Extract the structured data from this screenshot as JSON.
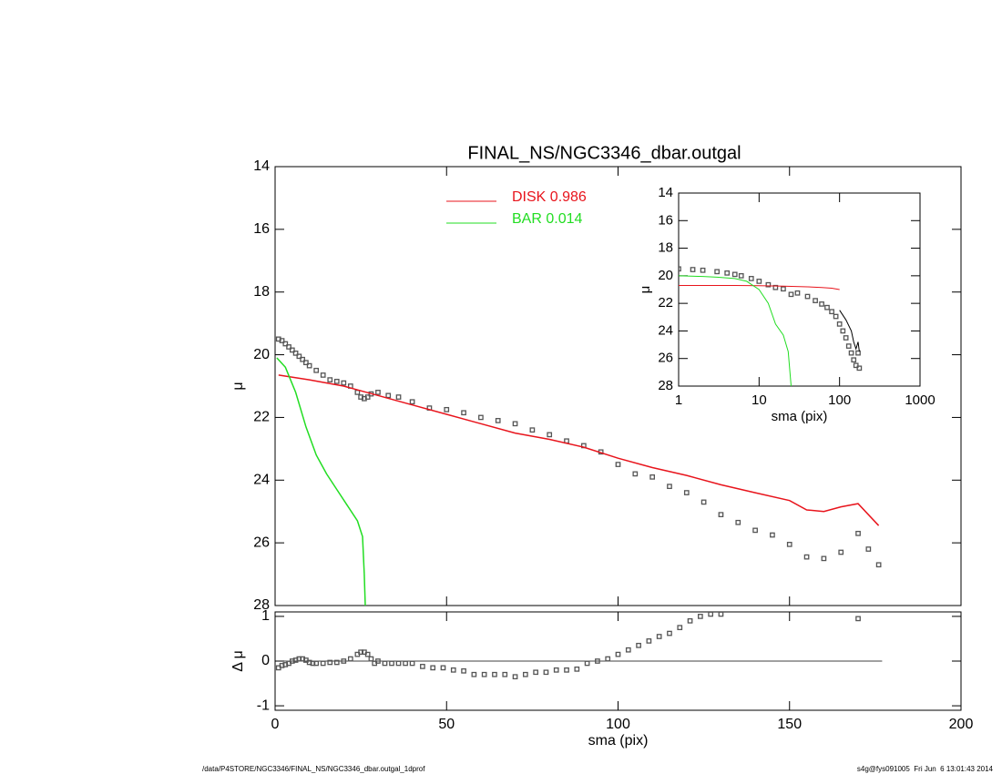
{
  "chart_data": [
    {
      "type": "line",
      "title": "FINAL_NS/NGC3346_dbar.outgal",
      "ylabel": "μ",
      "xlim": [
        0,
        200
      ],
      "ylim": [
        28,
        14
      ],
      "yticks": [
        14,
        16,
        18,
        20,
        22,
        24,
        26,
        28
      ],
      "legend": "upper center",
      "series": [
        {
          "style": "points",
          "color": "#555555",
          "x": [
            1,
            2,
            3,
            4,
            5,
            6,
            7,
            8,
            9,
            10,
            12,
            14,
            16,
            18,
            20,
            22,
            24,
            25,
            26,
            27,
            28,
            30,
            33,
            36,
            40,
            45,
            50,
            55,
            60,
            65,
            70,
            75,
            80,
            85,
            90,
            95,
            100,
            105,
            110,
            115,
            120,
            125,
            130,
            135,
            140,
            145,
            150,
            155,
            160,
            165,
            170,
            173,
            176
          ],
          "values": [
            19.5,
            19.55,
            19.65,
            19.75,
            19.85,
            19.95,
            20.05,
            20.15,
            20.25,
            20.35,
            20.5,
            20.65,
            20.8,
            20.85,
            20.9,
            21.0,
            21.2,
            21.35,
            21.4,
            21.35,
            21.25,
            21.2,
            21.3,
            21.35,
            21.5,
            21.7,
            21.75,
            21.85,
            22.0,
            22.1,
            22.2,
            22.4,
            22.55,
            22.75,
            22.9,
            23.1,
            23.5,
            23.8,
            23.9,
            24.2,
            24.4,
            24.7,
            25.1,
            25.35,
            25.6,
            25.75,
            26.05,
            26.45,
            26.5,
            26.3,
            25.7,
            26.2,
            26.7
          ]
        },
        {
          "name": "DISK  0.986",
          "style": "line",
          "color": "#e8141c",
          "x": [
            1,
            10,
            20,
            30,
            40,
            50,
            60,
            70,
            80,
            90,
            100,
            110,
            120,
            130,
            140,
            150,
            155,
            160,
            165,
            170,
            176
          ],
          "values": [
            20.65,
            20.8,
            21.0,
            21.3,
            21.6,
            21.9,
            22.2,
            22.5,
            22.7,
            22.95,
            23.3,
            23.6,
            23.85,
            24.15,
            24.4,
            24.65,
            24.95,
            25.0,
            24.85,
            24.75,
            25.45
          ]
        },
        {
          "name": "BAR  0.014",
          "style": "line",
          "color": "#22dd22",
          "x": [
            0.5,
            3,
            6,
            9,
            12,
            15,
            18,
            21,
            24,
            25.5,
            26,
            26.3
          ],
          "values": [
            20.1,
            20.4,
            21.2,
            22.3,
            23.2,
            23.8,
            24.3,
            24.8,
            25.3,
            25.8,
            27.0,
            28
          ]
        }
      ]
    },
    {
      "type": "line",
      "xlabel": "sma (pix)",
      "ylabel": "Δ μ",
      "xlim": [
        0,
        200
      ],
      "xticks": [
        0,
        50,
        100,
        150,
        200
      ],
      "ylim": [
        -1.1,
        1.1
      ],
      "yticks": [
        -1,
        0,
        1
      ],
      "baseline": {
        "y": 0,
        "x_end": 177
      },
      "series": [
        {
          "style": "points",
          "color": "#555555",
          "x": [
            1,
            2,
            3,
            4,
            5,
            6,
            7,
            8,
            9,
            10,
            11,
            12,
            14,
            16,
            18,
            20,
            22,
            24,
            25,
            26,
            27,
            28,
            29,
            30,
            32,
            34,
            36,
            38,
            40,
            43,
            46,
            49,
            52,
            55,
            58,
            61,
            64,
            67,
            70,
            73,
            76,
            79,
            82,
            85,
            88,
            91,
            94,
            97,
            100,
            103,
            106,
            109,
            112,
            115,
            118,
            121,
            124,
            127,
            130,
            170
          ],
          "values": [
            -0.15,
            -0.1,
            -0.08,
            -0.05,
            0,
            0.02,
            0.05,
            0.05,
            0.02,
            -0.03,
            -0.05,
            -0.05,
            -0.05,
            -0.03,
            -0.03,
            0,
            0.05,
            0.15,
            0.2,
            0.2,
            0.15,
            0.05,
            -0.05,
            0.0,
            -0.05,
            -0.05,
            -0.05,
            -0.05,
            -0.05,
            -0.12,
            -0.15,
            -0.15,
            -0.2,
            -0.22,
            -0.3,
            -0.3,
            -0.3,
            -0.3,
            -0.35,
            -0.3,
            -0.25,
            -0.25,
            -0.2,
            -0.2,
            -0.18,
            -0.05,
            0.0,
            0.05,
            0.15,
            0.25,
            0.35,
            0.45,
            0.55,
            0.62,
            0.75,
            0.9,
            1.0,
            1.05,
            1.05,
            0.95
          ]
        }
      ]
    },
    {
      "type": "line",
      "xlabel": "sma (pix)",
      "ylabel": "μ",
      "xscale": "log",
      "xlim": [
        1,
        1000
      ],
      "xticks": [
        1,
        10,
        100,
        1000
      ],
      "ylim": [
        28,
        14
      ],
      "yticks": [
        14,
        16,
        18,
        20,
        22,
        24,
        26,
        28
      ],
      "series": [
        {
          "style": "points",
          "color": "#555555",
          "x": [
            1,
            1.5,
            2,
            3,
            4,
            5,
            6,
            8,
            10,
            13,
            16,
            20,
            25,
            30,
            40,
            50,
            60,
            70,
            80,
            90,
            100,
            110,
            120,
            130,
            140,
            150,
            160,
            170,
            176
          ],
          "values": [
            19.5,
            19.55,
            19.6,
            19.7,
            19.8,
            19.9,
            20.0,
            20.2,
            20.4,
            20.65,
            20.85,
            20.95,
            21.35,
            21.25,
            21.5,
            21.8,
            22.05,
            22.3,
            22.6,
            22.95,
            23.5,
            24.0,
            24.5,
            25.1,
            25.6,
            26.1,
            26.5,
            25.6,
            26.7
          ]
        },
        {
          "style": "line",
          "color": "#e8141c",
          "x": [
            1,
            2,
            5,
            10,
            20,
            40,
            60,
            80,
            100
          ],
          "values": [
            20.7,
            20.7,
            20.7,
            20.72,
            20.75,
            20.8,
            20.85,
            20.9,
            21.0
          ]
        },
        {
          "style": "line",
          "color": "#22dd22",
          "x": [
            1,
            2,
            3,
            5,
            7,
            10,
            13,
            16,
            20,
            23,
            25
          ],
          "values": [
            20.0,
            20.05,
            20.1,
            20.2,
            20.4,
            21.0,
            22.0,
            23.5,
            24.3,
            25.5,
            28
          ]
        },
        {
          "style": "line",
          "color": "#000000",
          "x": [
            100,
            120,
            140,
            150,
            160,
            170,
            176
          ],
          "values": [
            22.5,
            23.2,
            24.0,
            24.8,
            25.3,
            24.8,
            25.5
          ]
        }
      ]
    }
  ],
  "footer": {
    "left": "/data/P4STORE/NGC3346/FINAL_NS/NGC3346_dbar.outgal_1dprof",
    "right": "s4g@fys091005  Fri Jun  6 13:01:43 2014"
  }
}
